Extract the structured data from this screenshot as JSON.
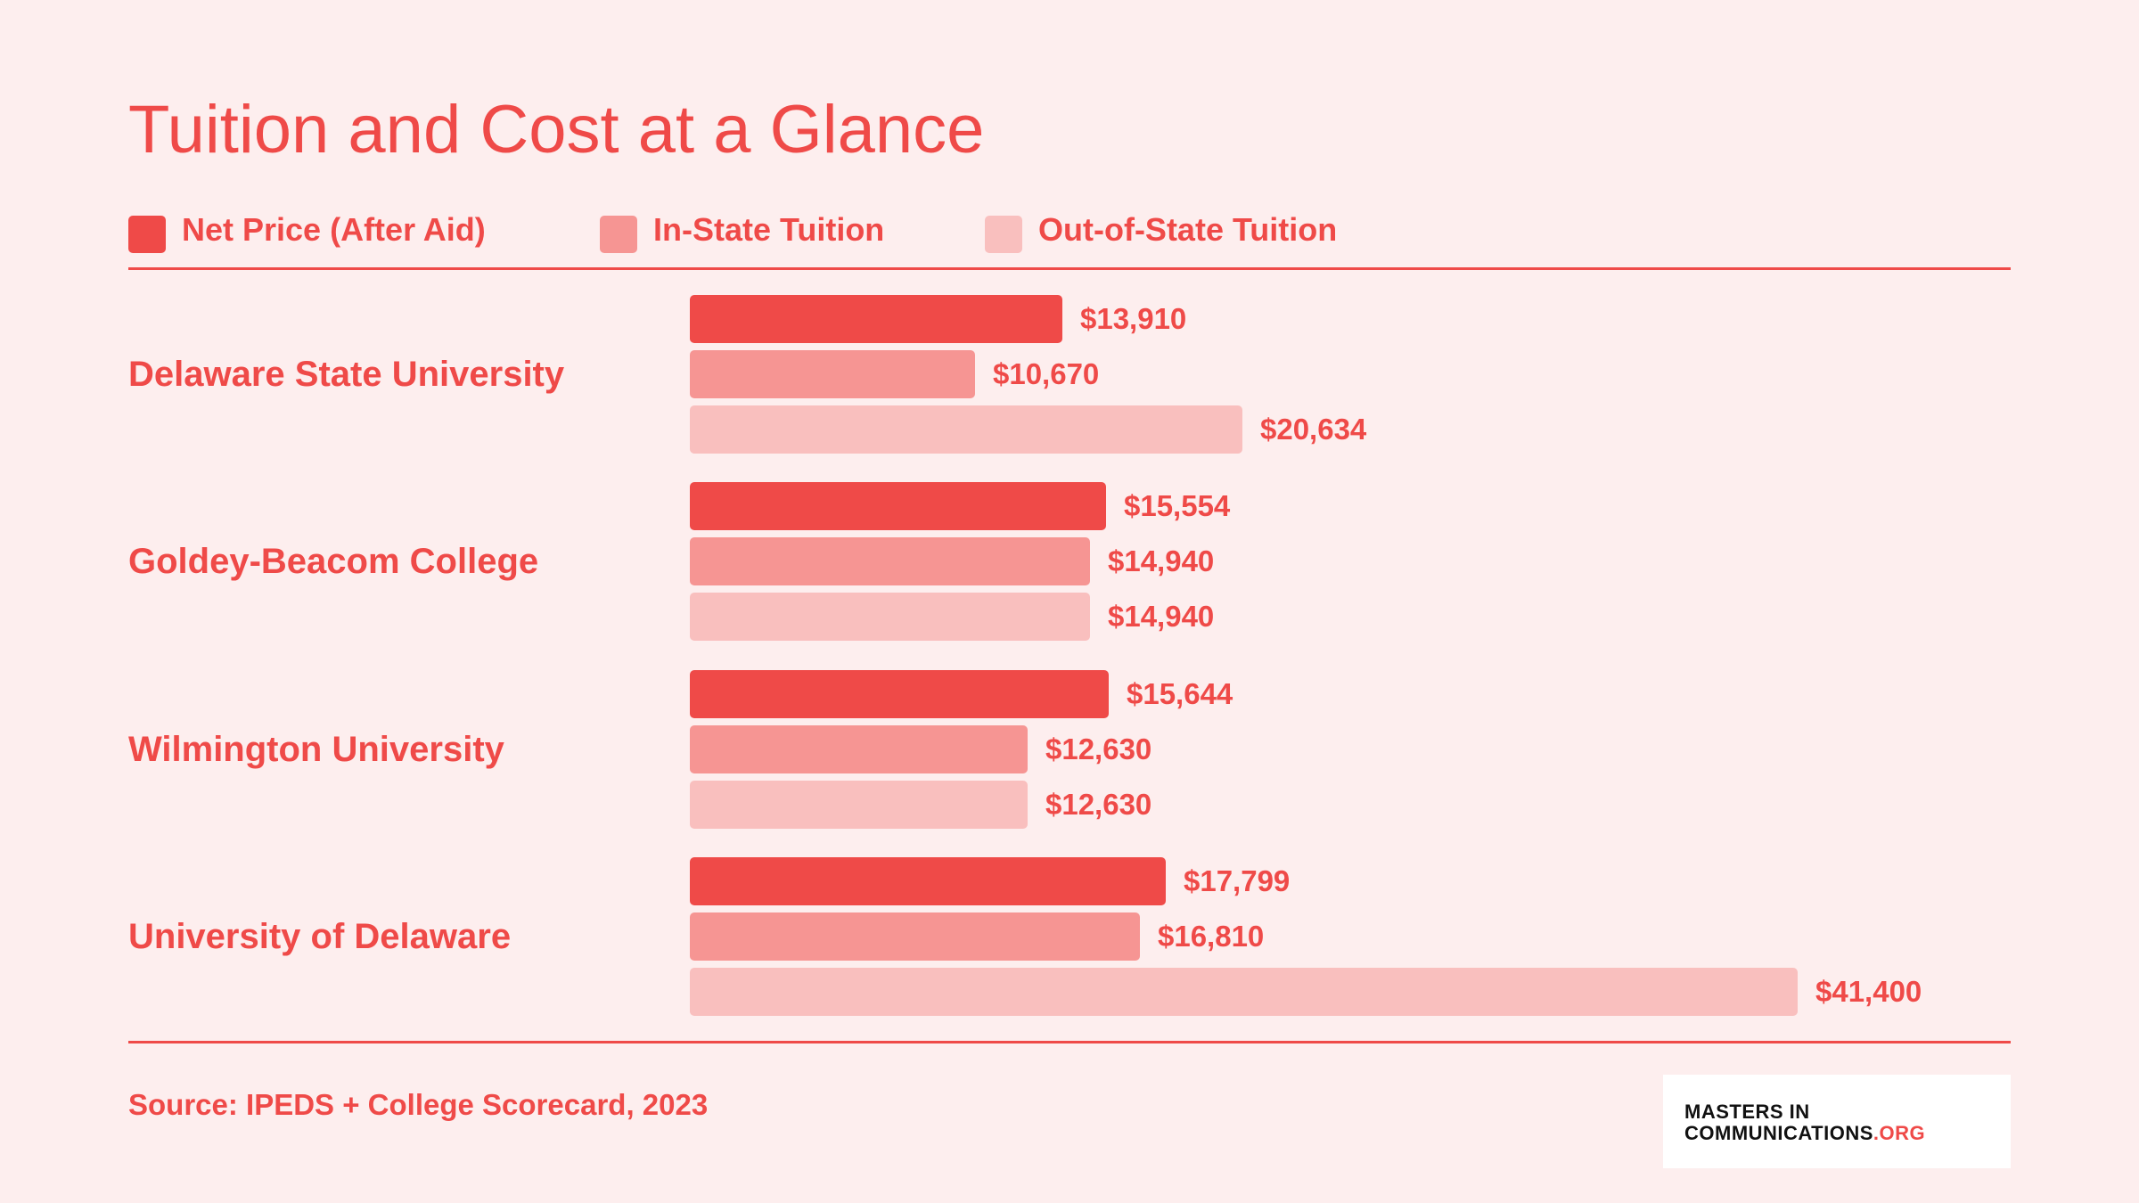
{
  "colors": {
    "background": "#fdeeee",
    "accent": "#ef4a48",
    "net_price": "#ef4a48",
    "in_state": "#f69593",
    "out_of_state": "#f9bfbe"
  },
  "legend": [
    {
      "label": "Net Price (After Aid)",
      "color": "#ef4a48"
    },
    {
      "label": "In-State Tuition",
      "color": "#f69593"
    },
    {
      "label": "Out-of-State Tuition",
      "color": "#f9bfbe"
    }
  ],
  "source": "Source: IPEDS + College Scorecard, 2023",
  "logo": {
    "line1": "MASTERS IN",
    "line2_main": "COMMUNICATIONS",
    "line2_suffix": ".ORG"
  },
  "chart_data": {
    "type": "bar",
    "orientation": "horizontal",
    "title": "Tuition and Cost at a Glance",
    "categories": [
      "Delaware State University",
      "Goldey-Beacom College",
      "Wilmington University",
      "University of Delaware"
    ],
    "series": [
      {
        "name": "Net Price (After Aid)",
        "color": "#ef4a48",
        "values": [
          13910,
          15554,
          15644,
          17799
        ],
        "labels": [
          "$13,910",
          "$15,554",
          "$15,644",
          "$17,799"
        ]
      },
      {
        "name": "In-State Tuition",
        "color": "#f69593",
        "values": [
          10670,
          14940,
          12630,
          16810
        ],
        "labels": [
          "$10,670",
          "$14,940",
          "$12,630",
          "$16,810"
        ]
      },
      {
        "name": "Out-of-State Tuition",
        "color": "#f9bfbe",
        "values": [
          20634,
          14940,
          12630,
          41400
        ],
        "labels": [
          "$20,634",
          "$14,940",
          "$12,630",
          "$41,400"
        ]
      }
    ],
    "xlim": [
      0,
      41400
    ],
    "grid": false,
    "legend_position": "top-left"
  }
}
